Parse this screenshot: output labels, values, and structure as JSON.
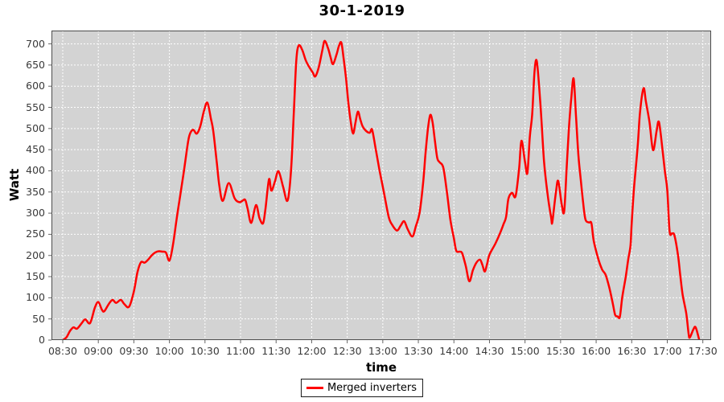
{
  "title": "30-1-2019",
  "colors": {
    "series": "#ff0000",
    "plot_background": "#d3d3d3",
    "gridline": "#ffffff",
    "plot_border": "#4d4d4d",
    "tick_mark": "#666666",
    "tick_label": "#3a3a3a",
    "text": "#000000",
    "legend_border": "#1a1a1a",
    "page_background": "#ffffff"
  },
  "legend": {
    "position": "bottom",
    "items": [
      {
        "label": "Merged inverters",
        "color": "#ff0000"
      }
    ]
  },
  "chart_data": {
    "type": "line",
    "title": "30-1-2019",
    "xlabel": "time",
    "ylabel": "Watt",
    "grid": true,
    "legend_position": "bottom",
    "x_tick_labels": [
      "08:30",
      "09:00",
      "09:30",
      "10:00",
      "10:30",
      "11:00",
      "11:30",
      "12:00",
      "12:30",
      "13:00",
      "13:30",
      "14:00",
      "14:30",
      "15:00",
      "15:30",
      "16:00",
      "16:30",
      "17:00",
      "17:30"
    ],
    "x_tick_minutes": [
      0,
      30,
      60,
      90,
      120,
      150,
      180,
      210,
      240,
      270,
      300,
      330,
      360,
      390,
      420,
      450,
      480,
      510,
      540
    ],
    "y_ticks": [
      0,
      50,
      100,
      150,
      200,
      250,
      300,
      350,
      400,
      450,
      500,
      550,
      600,
      650,
      700
    ],
    "xlim_minutes": [
      -9.5,
      547
    ],
    "ylim": [
      0,
      731.5
    ],
    "series": [
      {
        "name": "Merged inverters",
        "color": "#ff0000",
        "x_unit": "minutes after 08:30",
        "y_unit": "Watt",
        "points": [
          [
            0,
            0
          ],
          [
            3,
            6
          ],
          [
            6,
            21
          ],
          [
            9,
            30
          ],
          [
            12,
            27
          ],
          [
            16,
            40
          ],
          [
            19,
            49
          ],
          [
            23,
            40
          ],
          [
            27,
            76
          ],
          [
            30,
            90
          ],
          [
            33,
            72
          ],
          [
            35,
            68
          ],
          [
            39,
            86
          ],
          [
            42,
            95
          ],
          [
            45,
            88
          ],
          [
            49,
            95
          ],
          [
            52,
            85
          ],
          [
            56,
            79
          ],
          [
            60,
            115
          ],
          [
            63,
            160
          ],
          [
            66,
            184
          ],
          [
            69,
            183
          ],
          [
            72,
            190
          ],
          [
            75,
            200
          ],
          [
            78,
            207
          ],
          [
            81,
            210
          ],
          [
            84,
            209
          ],
          [
            87,
            207
          ],
          [
            90,
            188
          ],
          [
            93,
            225
          ],
          [
            96,
            285
          ],
          [
            99,
            340
          ],
          [
            102,
            395
          ],
          [
            105,
            455
          ],
          [
            107,
            485
          ],
          [
            110,
            497
          ],
          [
            113,
            488
          ],
          [
            116,
            505
          ],
          [
            119,
            540
          ],
          [
            122,
            561
          ],
          [
            125,
            523
          ],
          [
            127,
            494
          ],
          [
            130,
            418
          ],
          [
            132,
            367
          ],
          [
            135,
            329
          ],
          [
            140,
            371
          ],
          [
            145,
            335
          ],
          [
            149,
            326
          ],
          [
            152,
            330
          ],
          [
            154,
            331
          ],
          [
            156,
            310
          ],
          [
            159,
            277
          ],
          [
            163,
            319
          ],
          [
            166,
            288
          ],
          [
            169,
            276
          ],
          [
            171,
            310
          ],
          [
            174,
            380
          ],
          [
            176,
            353
          ],
          [
            179,
            375
          ],
          [
            182,
            399
          ],
          [
            186,
            361
          ],
          [
            189,
            329
          ],
          [
            191,
            350
          ],
          [
            193,
            420
          ],
          [
            195,
            540
          ],
          [
            197,
            660
          ],
          [
            199,
            696
          ],
          [
            202,
            686
          ],
          [
            205,
            661
          ],
          [
            208,
            645
          ],
          [
            211,
            632
          ],
          [
            213,
            623
          ],
          [
            216,
            645
          ],
          [
            219,
            685
          ],
          [
            221,
            707
          ],
          [
            224,
            688
          ],
          [
            226,
            668
          ],
          [
            228,
            652
          ],
          [
            231,
            675
          ],
          [
            233,
            695
          ],
          [
            235,
            703
          ],
          [
            237,
            665
          ],
          [
            239,
            618
          ],
          [
            241,
            560
          ],
          [
            243,
            515
          ],
          [
            245,
            488
          ],
          [
            247,
            515
          ],
          [
            249,
            540
          ],
          [
            251,
            522
          ],
          [
            253,
            505
          ],
          [
            256,
            494
          ],
          [
            259,
            490
          ],
          [
            261,
            497
          ],
          [
            264,
            452
          ],
          [
            267,
            405
          ],
          [
            271,
            348
          ],
          [
            275,
            291
          ],
          [
            278,
            272
          ],
          [
            282,
            259
          ],
          [
            285,
            270
          ],
          [
            288,
            281
          ],
          [
            291,
            262
          ],
          [
            295,
            245
          ],
          [
            298,
            270
          ],
          [
            301,
            300
          ],
          [
            304,
            370
          ],
          [
            306,
            440
          ],
          [
            308,
            497
          ],
          [
            310,
            532
          ],
          [
            312,
            515
          ],
          [
            314,
            470
          ],
          [
            316,
            430
          ],
          [
            318,
            420
          ],
          [
            321,
            408
          ],
          [
            324,
            352
          ],
          [
            327,
            285
          ],
          [
            330,
            240
          ],
          [
            332,
            211
          ],
          [
            335,
            209
          ],
          [
            337,
            205
          ],
          [
            340,
            175
          ],
          [
            343,
            139
          ],
          [
            346,
            165
          ],
          [
            349,
            183
          ],
          [
            352,
            190
          ],
          [
            354,
            178
          ],
          [
            356,
            162
          ],
          [
            358,
            180
          ],
          [
            360,
            202
          ],
          [
            365,
            228
          ],
          [
            369,
            253
          ],
          [
            372,
            275
          ],
          [
            374,
            291
          ],
          [
            376,
            334
          ],
          [
            379,
            348
          ],
          [
            382,
            340
          ],
          [
            385,
            405
          ],
          [
            387,
            471
          ],
          [
            390,
            420
          ],
          [
            392,
            395
          ],
          [
            394,
            480
          ],
          [
            396,
            532
          ],
          [
            398,
            633
          ],
          [
            400,
            658
          ],
          [
            403,
            557
          ],
          [
            406,
            424
          ],
          [
            409,
            345
          ],
          [
            412,
            290
          ],
          [
            413,
            279
          ],
          [
            416,
            348
          ],
          [
            418,
            376
          ],
          [
            421,
            320
          ],
          [
            423,
            304
          ],
          [
            425,
            400
          ],
          [
            427,
            500
          ],
          [
            429,
            570
          ],
          [
            431,
            618
          ],
          [
            433,
            530
          ],
          [
            435,
            437
          ],
          [
            437,
            380
          ],
          [
            439,
            325
          ],
          [
            441,
            285
          ],
          [
            444,
            278
          ],
          [
            446,
            276
          ],
          [
            448,
            234
          ],
          [
            452,
            190
          ],
          [
            455,
            167
          ],
          [
            458,
            154
          ],
          [
            461,
            125
          ],
          [
            464,
            87
          ],
          [
            466,
            60
          ],
          [
            468,
            56
          ],
          [
            470,
            55
          ],
          [
            472,
            101
          ],
          [
            475,
            150
          ],
          [
            477,
            190
          ],
          [
            479,
            224
          ],
          [
            480,
            277
          ],
          [
            482,
            361
          ],
          [
            485,
            456
          ],
          [
            487,
            538
          ],
          [
            490,
            595
          ],
          [
            492,
            563
          ],
          [
            495,
            515
          ],
          [
            498,
            449
          ],
          [
            501,
            494
          ],
          [
            503,
            515
          ],
          [
            506,
            449
          ],
          [
            508,
            399
          ],
          [
            510,
            354
          ],
          [
            512,
            257
          ],
          [
            514,
            252
          ],
          [
            516,
            248
          ],
          [
            519,
            202
          ],
          [
            521,
            152
          ],
          [
            523,
            107
          ],
          [
            526,
            63
          ],
          [
            528,
            15
          ],
          [
            529,
            6
          ],
          [
            532,
            25
          ],
          [
            534,
            30
          ],
          [
            537,
            0
          ]
        ]
      }
    ]
  }
}
